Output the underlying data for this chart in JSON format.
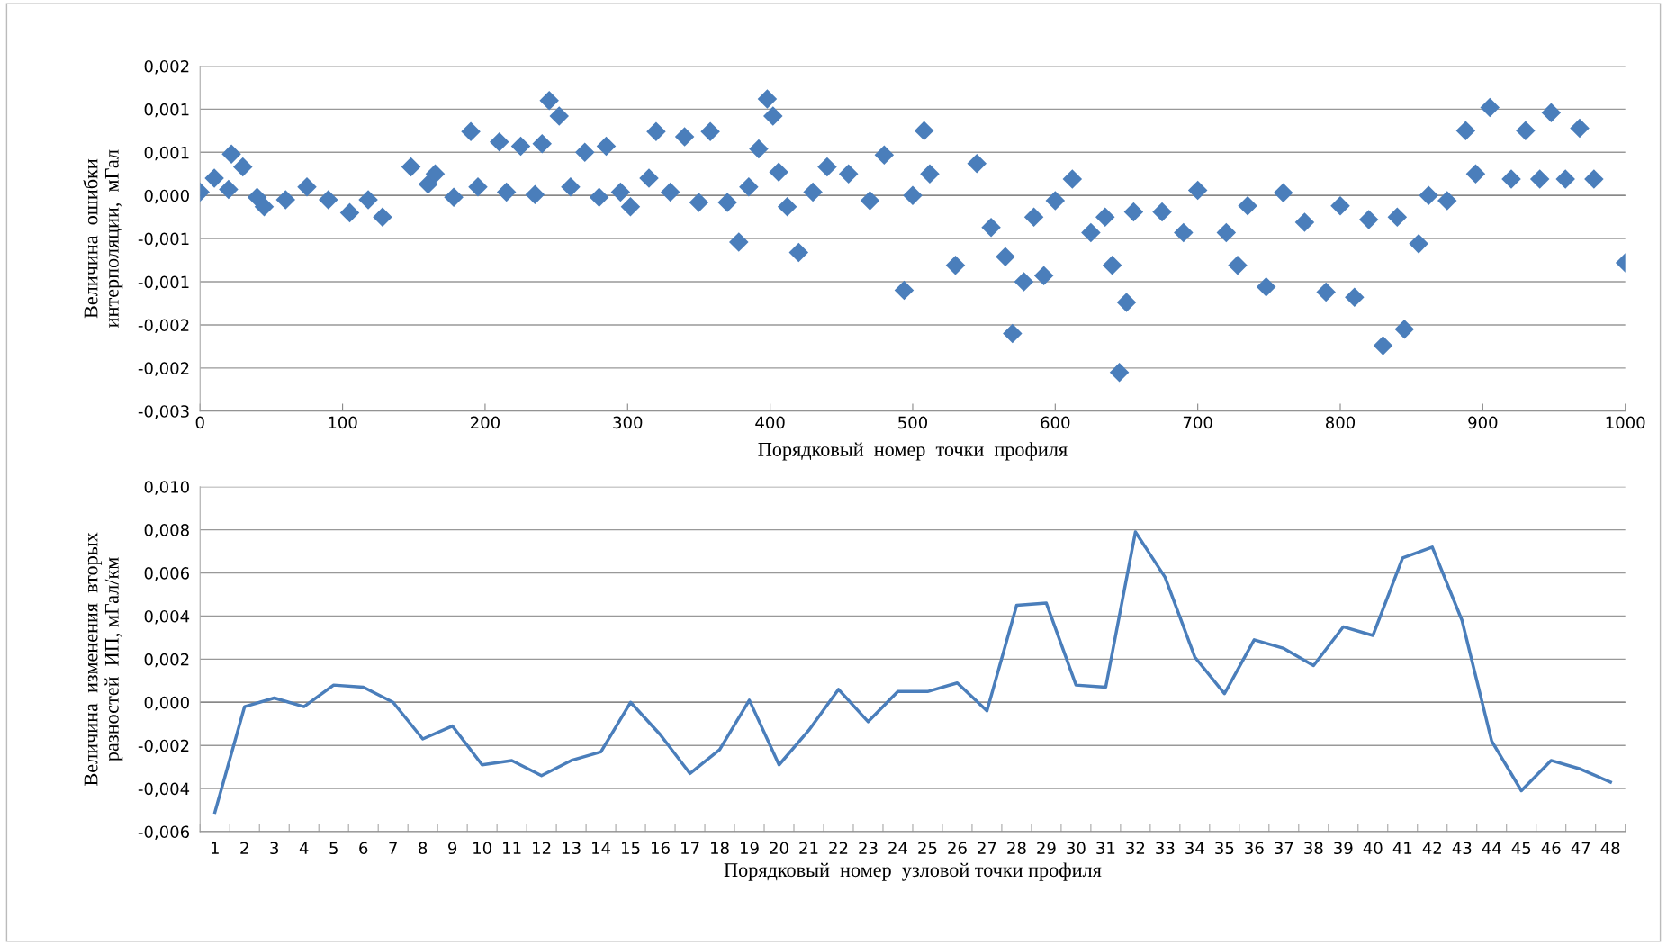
{
  "chart_data": [
    {
      "type": "scatter",
      "xlabel": "Порядковый  номер  точки  профиля",
      "ylabel": "Величина  ошибки\nинтерполяции,  мГал",
      "marker": "diamond",
      "grid": "y",
      "xlim": [
        0,
        1000
      ],
      "xticks": [
        0,
        100,
        200,
        300,
        400,
        500,
        600,
        700,
        800,
        900,
        1000
      ],
      "ylim": [
        -0.0025,
        0.0015
      ],
      "yticks": [
        {
          "value": -0.0025,
          "label": "-0,003"
        },
        {
          "value": -0.002,
          "label": "-0,002"
        },
        {
          "value": -0.0015,
          "label": "-0,002"
        },
        {
          "value": -0.001,
          "label": "-0,001"
        },
        {
          "value": -0.0005,
          "label": "-0,001"
        },
        {
          "value": 0,
          "label": "0,000"
        },
        {
          "value": 0.0005,
          "label": "0,001"
        },
        {
          "value": 0.001,
          "label": "0,001"
        },
        {
          "value": 0.0015,
          "label": "0,002"
        }
      ],
      "series": [
        {
          "color": "#4a7ebb",
          "x": [
            0,
            10,
            20,
            22,
            30,
            40,
            45,
            60,
            75,
            90,
            105,
            118,
            128,
            148,
            160,
            165,
            178,
            190,
            195,
            210,
            215,
            225,
            235,
            240,
            245,
            252,
            260,
            270,
            280,
            285,
            295,
            302,
            315,
            320,
            330,
            340,
            350,
            358,
            370,
            378,
            385,
            392,
            398,
            402,
            406,
            412,
            420,
            430,
            440,
            455,
            470,
            480,
            494,
            500,
            508,
            512,
            530,
            545,
            555,
            565,
            570,
            578,
            585,
            592,
            600,
            612,
            625,
            635,
            640,
            645,
            650,
            655,
            675,
            690,
            700,
            720,
            728,
            735,
            748,
            760,
            775,
            790,
            800,
            810,
            820,
            830,
            840,
            845,
            855,
            862,
            875,
            888,
            895,
            905,
            920,
            930,
            940,
            948,
            958,
            968,
            978,
            1000
          ],
          "values": [
            4e-05,
            0.0002,
            7e-05,
            0.00048,
            0.00033,
            -2e-05,
            -0.00013,
            -5e-05,
            0.0001,
            -5e-05,
            -0.0002,
            -5e-05,
            -0.00025,
            0.00033,
            0.00013,
            0.00025,
            -2e-05,
            0.00074,
            0.0001,
            0.00062,
            4e-05,
            0.00057,
            1e-05,
            0.0006,
            0.0011,
            0.00092,
            0.0001,
            0.0005,
            -2e-05,
            0.00057,
            4e-05,
            -0.00013,
            0.0002,
            0.00074,
            4e-05,
            0.00068,
            -8e-05,
            0.00074,
            -8e-05,
            -0.00054,
            0.0001,
            0.00054,
            0.00112,
            0.00092,
            0.00027,
            -0.00013,
            -0.00066,
            4e-05,
            0.00033,
            0.00025,
            -6e-05,
            0.00047,
            -0.0011,
            0,
            0.00075,
            0.00025,
            -0.00081,
            0.00037,
            -0.00037,
            -0.00071,
            -0.0016,
            -0.001,
            -0.00025,
            -0.00093,
            -6e-05,
            0.00019,
            -0.00043,
            -0.00025,
            -0.00081,
            -0.00205,
            -0.00124,
            -0.00019,
            -0.00019,
            -0.00043,
            6e-05,
            -0.00043,
            -0.00081,
            -0.00012,
            -0.00106,
            3e-05,
            -0.00031,
            -0.00112,
            -0.00012,
            -0.00118,
            -0.00028,
            -0.00174,
            -0.00025,
            -0.00155,
            -0.00056,
            0,
            -6e-05,
            0.00075,
            0.00025,
            0.00102,
            0.00019,
            0.00075,
            0.00019,
            0.00096,
            0.00019,
            0.00078,
            0.00019,
            -0.00078
          ]
        }
      ]
    },
    {
      "type": "line",
      "xlabel": "Порядковый  номер  узловой точки профиля",
      "ylabel": "Величина  изменения  вторых\nразностей  ИП, мГал/км",
      "grid": "y",
      "marker": "none",
      "line_style": "solid",
      "categories": [
        "1",
        "2",
        "3",
        "4",
        "5",
        "6",
        "7",
        "8",
        "9",
        "10",
        "11",
        "12",
        "13",
        "14",
        "15",
        "16",
        "17",
        "18",
        "19",
        "20",
        "21",
        "22",
        "23",
        "24",
        "25",
        "26",
        "27",
        "28",
        "29",
        "30",
        "31",
        "32",
        "33",
        "34",
        "35",
        "36",
        "37",
        "38",
        "39",
        "40",
        "41",
        "42",
        "43",
        "44",
        "45",
        "46",
        "47",
        "48"
      ],
      "ylim": [
        -0.006,
        0.01
      ],
      "yticks": [
        {
          "value": -0.006,
          "label": "-0,006"
        },
        {
          "value": -0.004,
          "label": "-0,004"
        },
        {
          "value": -0.002,
          "label": "-0,002"
        },
        {
          "value": 0,
          "label": "0,000"
        },
        {
          "value": 0.002,
          "label": "0,002"
        },
        {
          "value": 0.004,
          "label": "0,004"
        },
        {
          "value": 0.006,
          "label": "0,006"
        },
        {
          "value": 0.008,
          "label": "0,008"
        },
        {
          "value": 0.01,
          "label": "0,010"
        }
      ],
      "series": [
        {
          "color": "#4a7ebb",
          "values": [
            -0.0051,
            -0.0002,
            0.0002,
            -0.0002,
            0.0008,
            0.0007,
            0.0,
            -0.0017,
            -0.0011,
            -0.0029,
            -0.0027,
            -0.0034,
            -0.0027,
            -0.0023,
            0.0,
            -0.0015,
            -0.0033,
            -0.0022,
            0.0001,
            -0.0029,
            -0.0013,
            0.0006,
            -0.0009,
            0.0005,
            0.0005,
            0.0009,
            -0.0004,
            0.0045,
            0.0046,
            0.0008,
            0.0007,
            0.0079,
            0.0058,
            0.0021,
            0.0004,
            0.0029,
            0.0025,
            0.0017,
            0.0035,
            0.0031,
            0.0067,
            0.0072,
            0.0038,
            -0.0018,
            -0.0041,
            -0.0027,
            -0.0031,
            -0.0037
          ]
        }
      ]
    }
  ]
}
